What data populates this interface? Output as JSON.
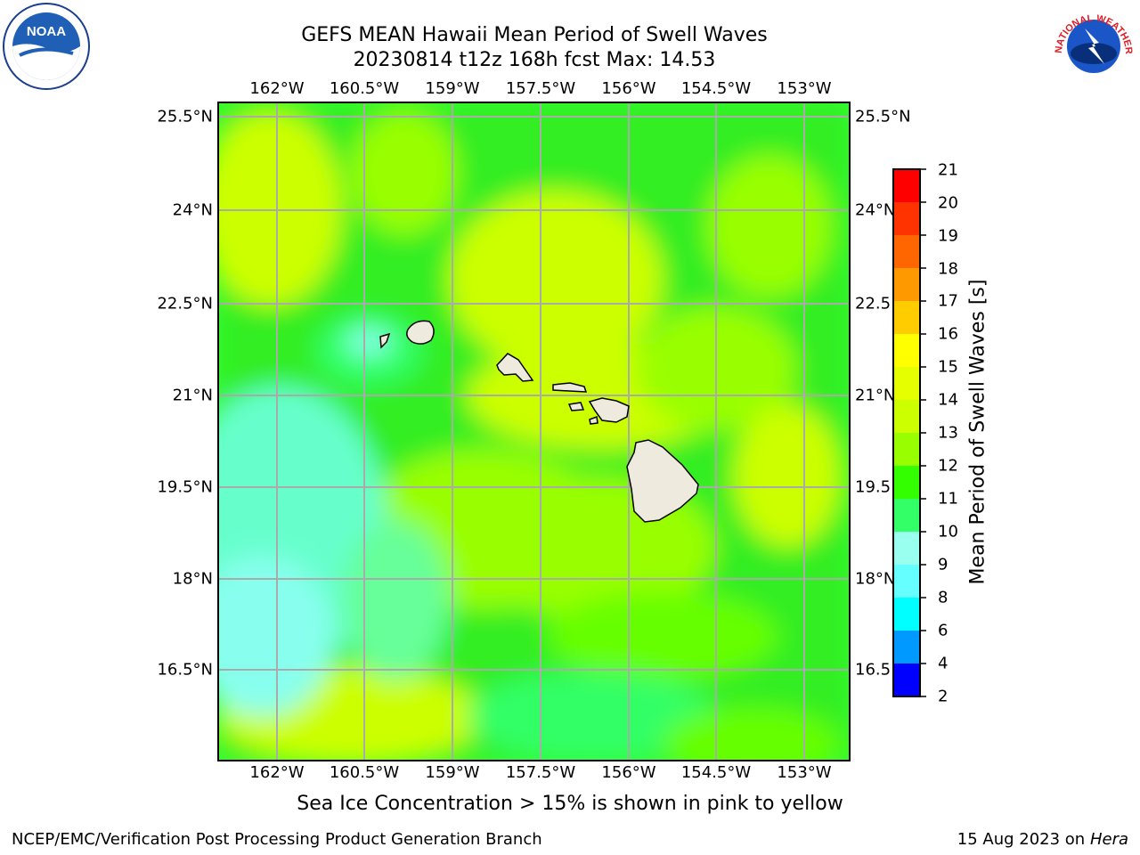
{
  "title": {
    "line1": "GEFS MEAN Hawaii Mean Period of Swell Waves",
    "line2": "20230814 t12z 168h fcst   Max: 14.53"
  },
  "map": {
    "lon_labels": [
      "162°W",
      "160.5°W",
      "159°W",
      "157.5°W",
      "156°W",
      "154.5°W",
      "153°W"
    ],
    "lat_labels_left": [
      "25.5°N",
      "24°N",
      "22.5°N",
      "21°N",
      "19.5°N",
      "18°N",
      "16.5°N"
    ],
    "lat_labels_right": [
      "25.5°N",
      "24°N",
      "22.5",
      "21°N",
      "19.5",
      "18°N",
      "16.5"
    ],
    "gridlines": true,
    "islands": [
      "Niihau",
      "Kauai",
      "Oahu",
      "Molokai",
      "Lanai",
      "Kahoolawe",
      "Maui",
      "Hawaii"
    ]
  },
  "colorbar": {
    "label": "Mean Period of Swell Waves [s]",
    "ticks": [
      "21",
      "20",
      "19",
      "18",
      "17",
      "16",
      "15",
      "14",
      "13",
      "12",
      "11",
      "10",
      "9",
      "8",
      "6",
      "4",
      "2"
    ],
    "colors": [
      "#ff0000",
      "#ff3300",
      "#ff6600",
      "#ff9900",
      "#ffcc00",
      "#ffff00",
      "#e6ff00",
      "#ccff00",
      "#99ff00",
      "#33ff00",
      "#33ff66",
      "#99ffee",
      "#66ffff",
      "#00ffff",
      "#0099ff",
      "#0000ff"
    ]
  },
  "subtitle": "Sea Ice Concentration > 15% is shown in pink to yellow",
  "footer": {
    "left": "NCEP/EMC/Verification Post Processing Product Generation Branch",
    "right_date": "15 Aug 2023 on",
    "right_machine": "Hera"
  },
  "logos": {
    "noaa": "NOAA",
    "nws": "NATIONAL WEATHER SERVICE"
  }
}
